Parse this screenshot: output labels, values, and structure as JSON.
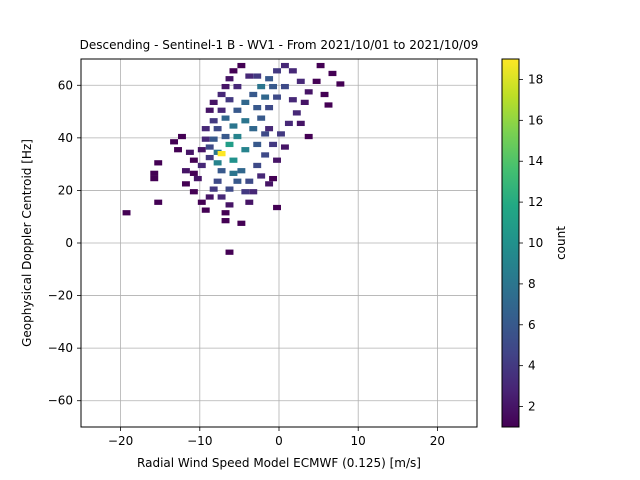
{
  "chart_data": {
    "type": "heatmap",
    "title": "Descending - Sentinel-1 B - WV1 - From 2021/10/01 to 2021/10/09",
    "xlabel": "Radial Wind Speed Model ECMWF (0.125) [m/s]",
    "ylabel": "Geophysical Doppler Centroid [Hz]",
    "xlim": [
      -25,
      25
    ],
    "ylim": [
      -70,
      70
    ],
    "xticks": [
      -20,
      -10,
      0,
      10,
      20
    ],
    "yticks": [
      -60,
      -40,
      -20,
      0,
      20,
      40,
      60
    ],
    "grid": true,
    "colorbar": {
      "label": "count",
      "range": [
        1,
        19
      ],
      "ticks": [
        2,
        4,
        6,
        8,
        10,
        12,
        14,
        16,
        18
      ],
      "colormap": "viridis"
    },
    "cells": [
      [
        -19.5,
        12,
        1
      ],
      [
        -15.5,
        16,
        1
      ],
      [
        -16.0,
        25,
        1
      ],
      [
        -16.0,
        27,
        1
      ],
      [
        -15.5,
        31,
        1
      ],
      [
        -13.5,
        39,
        1
      ],
      [
        -12.5,
        41,
        1
      ],
      [
        -13.0,
        36,
        1
      ],
      [
        -11.5,
        35,
        2
      ],
      [
        -11.0,
        32,
        1
      ],
      [
        -12.0,
        28,
        2
      ],
      [
        -11.0,
        27,
        1
      ],
      [
        -12.0,
        23,
        1
      ],
      [
        -10.5,
        25,
        2
      ],
      [
        -11.0,
        20,
        1
      ],
      [
        -10.0,
        16,
        1
      ],
      [
        -9.5,
        13,
        1
      ],
      [
        -10.0,
        30,
        3
      ],
      [
        -9.0,
        33,
        4
      ],
      [
        -9.0,
        37,
        5
      ],
      [
        -8.5,
        40,
        6
      ],
      [
        -9.5,
        44,
        3
      ],
      [
        -8.5,
        47,
        4
      ],
      [
        -9.0,
        51,
        2
      ],
      [
        -8.5,
        54,
        2
      ],
      [
        -7.5,
        57,
        3
      ],
      [
        -7.0,
        60,
        2
      ],
      [
        -6.5,
        63,
        2
      ],
      [
        -6.0,
        66,
        1
      ],
      [
        -5.0,
        68,
        1
      ],
      [
        -8.0,
        35,
        8
      ],
      [
        -8.0,
        31,
        9
      ],
      [
        -7.5,
        28,
        6
      ],
      [
        -8.0,
        24,
        5
      ],
      [
        -8.5,
        21,
        4
      ],
      [
        -7.5,
        18,
        3
      ],
      [
        -6.5,
        15,
        2
      ],
      [
        -7.0,
        9,
        1
      ],
      [
        -5.0,
        8,
        1
      ],
      [
        -4.0,
        16,
        2
      ],
      [
        -3.5,
        20,
        3
      ],
      [
        -4.0,
        24,
        5
      ],
      [
        -5.0,
        28,
        7
      ],
      [
        -6.0,
        32,
        10
      ],
      [
        -7.5,
        34.5,
        19
      ],
      [
        -6.5,
        38,
        11
      ],
      [
        -5.5,
        41,
        9
      ],
      [
        -6.0,
        45,
        8
      ],
      [
        -7.0,
        48,
        7
      ],
      [
        -5.5,
        51,
        6
      ],
      [
        -4.5,
        54,
        7
      ],
      [
        -3.5,
        57,
        6
      ],
      [
        -2.5,
        60,
        8
      ],
      [
        -1.5,
        63,
        6
      ],
      [
        -0.5,
        66,
        4
      ],
      [
        0.5,
        68,
        3
      ],
      [
        1.5,
        66,
        3
      ],
      [
        2.5,
        62,
        3
      ],
      [
        3.5,
        58,
        2
      ],
      [
        3.0,
        54,
        2
      ],
      [
        2.0,
        50,
        3
      ],
      [
        1.0,
        46,
        3
      ],
      [
        0.0,
        42,
        4
      ],
      [
        -1.0,
        38,
        4
      ],
      [
        -2.0,
        34,
        5
      ],
      [
        -3.0,
        30,
        5
      ],
      [
        -2.5,
        26,
        3
      ],
      [
        -1.5,
        23,
        2
      ],
      [
        -1.0,
        25,
        1
      ],
      [
        -0.5,
        14,
        1
      ],
      [
        -3.0,
        38,
        6
      ],
      [
        -3.5,
        44,
        7
      ],
      [
        -2.5,
        48,
        6
      ],
      [
        -1.5,
        52,
        5
      ],
      [
        -0.5,
        56,
        5
      ],
      [
        0.5,
        60,
        5
      ],
      [
        -4.0,
        64,
        3
      ],
      [
        -5.5,
        60,
        3
      ],
      [
        -6.5,
        55,
        4
      ],
      [
        -7.5,
        51,
        3
      ],
      [
        -4.5,
        47,
        8
      ],
      [
        -4.5,
        36,
        9
      ],
      [
        -5.5,
        24,
        6
      ],
      [
        -6.5,
        21,
        5
      ],
      [
        -4.5,
        20,
        4
      ],
      [
        1.5,
        55,
        3
      ],
      [
        2.5,
        46,
        2
      ],
      [
        3.5,
        41,
        1
      ],
      [
        4.5,
        62,
        1
      ],
      [
        5.5,
        57,
        1
      ],
      [
        6.0,
        53,
        1
      ],
      [
        7.5,
        61,
        1
      ],
      [
        6.5,
        65,
        1
      ],
      [
        5.0,
        68,
        1
      ],
      [
        -1.5,
        44,
        3
      ],
      [
        0.5,
        37,
        2
      ],
      [
        -0.5,
        32,
        2
      ],
      [
        -8.0,
        44,
        5
      ],
      [
        -9.5,
        40,
        3
      ],
      [
        -10.0,
        36,
        2
      ],
      [
        -7.0,
        41,
        6
      ],
      [
        -6.0,
        27,
        8
      ],
      [
        -2.0,
        42,
        5
      ],
      [
        -3.0,
        52,
        6
      ],
      [
        -6.5,
        -3,
        1
      ],
      [
        -9.0,
        18,
        2
      ],
      [
        -7.0,
        12,
        1
      ],
      [
        -3.0,
        64,
        4
      ],
      [
        -1.0,
        60,
        6
      ],
      [
        -2.0,
        56,
        7
      ]
    ]
  }
}
